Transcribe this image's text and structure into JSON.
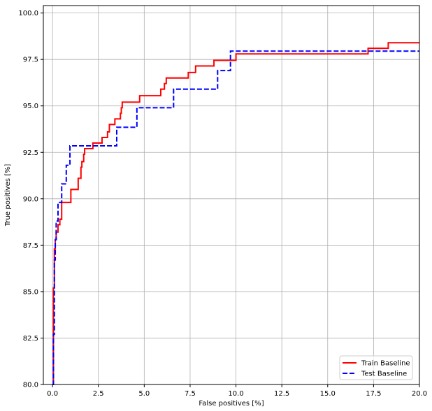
{
  "chart_data": {
    "type": "line",
    "title": "",
    "xlabel": "False positives [%]",
    "ylabel": "True positives [%]",
    "xlim": [
      -0.5,
      20.0
    ],
    "ylim": [
      80.0,
      100.4
    ],
    "x_ticks": [
      0.0,
      2.5,
      5.0,
      7.5,
      10.0,
      12.5,
      15.0,
      17.5,
      20.0
    ],
    "x_tick_labels": [
      "0.0",
      "2.5",
      "5.0",
      "7.5",
      "10.0",
      "12.5",
      "15.0",
      "17.5",
      "20.0"
    ],
    "y_ticks": [
      80.0,
      82.5,
      85.0,
      87.5,
      90.0,
      92.5,
      95.0,
      97.5,
      100.0
    ],
    "y_tick_labels": [
      "80.0",
      "82.5",
      "85.0",
      "87.5",
      "90.0",
      "92.5",
      "95.0",
      "97.5",
      "100.0"
    ],
    "grid": true,
    "legend_position": "lower-right",
    "series": [
      {
        "name": "Train Baseline",
        "color": "#ff0000",
        "line_style": "solid",
        "step": true,
        "points": [
          [
            0.0,
            80.0
          ],
          [
            0.05,
            85.2
          ],
          [
            0.1,
            87.3
          ],
          [
            0.15,
            87.8
          ],
          [
            0.2,
            88.2
          ],
          [
            0.3,
            88.6
          ],
          [
            0.4,
            88.9
          ],
          [
            0.5,
            89.8
          ],
          [
            1.0,
            90.5
          ],
          [
            1.4,
            91.1
          ],
          [
            1.55,
            91.7
          ],
          [
            1.6,
            92.0
          ],
          [
            1.7,
            92.4
          ],
          [
            1.75,
            92.7
          ],
          [
            2.2,
            93.0
          ],
          [
            2.7,
            93.3
          ],
          [
            3.0,
            93.6
          ],
          [
            3.1,
            94.0
          ],
          [
            3.4,
            94.3
          ],
          [
            3.7,
            94.6
          ],
          [
            3.75,
            94.9
          ],
          [
            3.8,
            95.2
          ],
          [
            4.75,
            95.55
          ],
          [
            5.9,
            95.9
          ],
          [
            6.1,
            96.2
          ],
          [
            6.2,
            96.5
          ],
          [
            7.4,
            96.8
          ],
          [
            7.8,
            97.15
          ],
          [
            8.8,
            97.45
          ],
          [
            10.0,
            97.8
          ],
          [
            17.2,
            98.1
          ],
          [
            18.3,
            98.4
          ],
          [
            20.0,
            98.4
          ]
        ]
      },
      {
        "name": "Test Baseline",
        "color": "#0000ff",
        "line_style": "dashed",
        "step": true,
        "points": [
          [
            0.0,
            80.0
          ],
          [
            0.05,
            82.7
          ],
          [
            0.1,
            86.7
          ],
          [
            0.15,
            87.8
          ],
          [
            0.2,
            88.8
          ],
          [
            0.3,
            89.8
          ],
          [
            0.5,
            90.8
          ],
          [
            0.75,
            91.8
          ],
          [
            0.95,
            92.85
          ],
          [
            3.5,
            93.85
          ],
          [
            4.6,
            94.9
          ],
          [
            6.6,
            95.9
          ],
          [
            9.0,
            96.9
          ],
          [
            9.7,
            97.95
          ],
          [
            20.0,
            97.95
          ]
        ]
      }
    ]
  }
}
